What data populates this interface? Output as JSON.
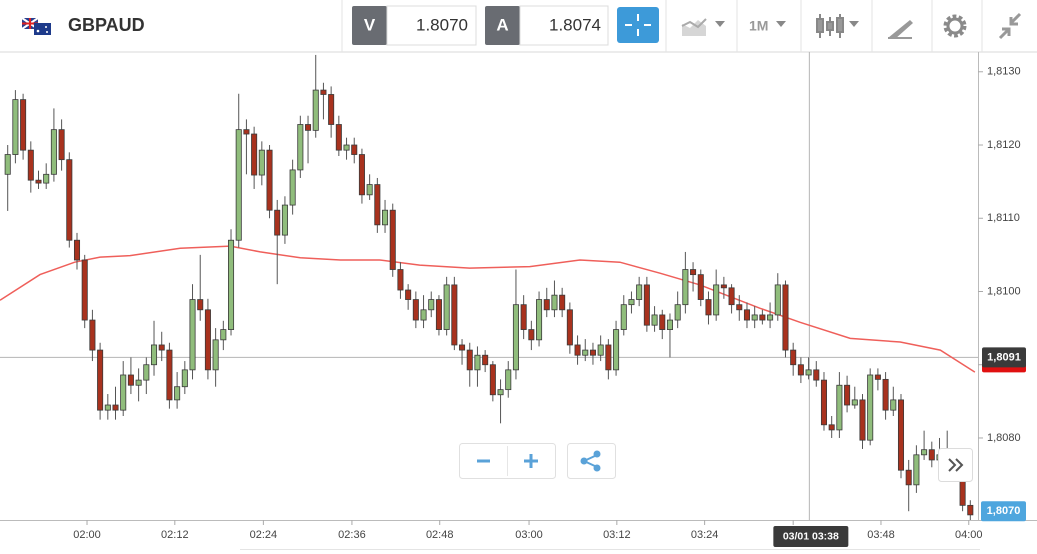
{
  "toolbar": {
    "symbol": "GBPAUD",
    "bid_label": "V",
    "bid": "1.8070",
    "ask_label": "A",
    "ask": "1.8074",
    "timeframe": "1M"
  },
  "chart_data": {
    "type": "candlestick",
    "xlim": [
      -1,
      126
    ],
    "ylim": [
      1.80688,
      1.81327
    ],
    "xticks": [
      {
        "value": 10.3,
        "label": "02:00"
      },
      {
        "value": 21.7,
        "label": "02:12"
      },
      {
        "value": 33.2,
        "label": "02:24"
      },
      {
        "value": 44.7,
        "label": "02:36"
      },
      {
        "value": 56.1,
        "label": "02:48"
      },
      {
        "value": 67.7,
        "label": "03:00"
      },
      {
        "value": 79.1,
        "label": "03:12"
      },
      {
        "value": 90.5,
        "label": "03:24"
      },
      {
        "value": 102,
        "label": "03:36"
      },
      {
        "value": 113.4,
        "label": "03:48"
      },
      {
        "value": 124.8,
        "label": "04:00"
      }
    ],
    "yticks": [
      {
        "value": 1.808,
        "label": "1,8080"
      },
      {
        "value": 1.809,
        "label": "1,8090"
      },
      {
        "value": 1.81,
        "label": "1,8100"
      },
      {
        "value": 1.811,
        "label": "1,8110"
      },
      {
        "value": 1.812,
        "label": "1,8120"
      },
      {
        "value": 1.813,
        "label": "1,8130"
      }
    ],
    "up_color": "#90bd7c",
    "down_color": "#a8321e",
    "ohlc": [
      [
        1.8116,
        1.812,
        1.8111,
        1.81187
      ],
      [
        1.81187,
        1.81275,
        1.81175,
        1.81262
      ],
      [
        1.81262,
        1.8127,
        1.8118,
        1.81193
      ],
      [
        1.81193,
        1.81205,
        1.81135,
        1.81152
      ],
      [
        1.81152,
        1.81165,
        1.8114,
        1.81148
      ],
      [
        1.81148,
        1.81175,
        1.8114,
        1.8116
      ],
      [
        1.8116,
        1.8125,
        1.8115,
        1.81221
      ],
      [
        1.81221,
        1.81235,
        1.81165,
        1.8118
      ],
      [
        1.8118,
        1.8119,
        1.8106,
        1.8107
      ],
      [
        1.8107,
        1.8108,
        1.8103,
        1.81043
      ],
      [
        1.81043,
        1.8105,
        1.8095,
        1.80961
      ],
      [
        1.80961,
        1.80975,
        1.80905,
        1.8092
      ],
      [
        1.8092,
        1.8093,
        1.80825,
        1.80838
      ],
      [
        1.80838,
        1.8086,
        1.80825,
        1.80845
      ],
      [
        1.80845,
        1.8087,
        1.80825,
        1.80838
      ],
      [
        1.80838,
        1.80905,
        1.8083,
        1.80886
      ],
      [
        1.80886,
        1.8091,
        1.8086,
        1.80872
      ],
      [
        1.80872,
        1.80895,
        1.8085,
        1.80879
      ],
      [
        1.80879,
        1.8091,
        1.8086,
        1.809
      ],
      [
        1.809,
        1.8096,
        1.80885,
        1.80927
      ],
      [
        1.80927,
        1.80945,
        1.80905,
        1.8092
      ],
      [
        1.8092,
        1.8093,
        1.8084,
        1.80852
      ],
      [
        1.80852,
        1.8089,
        1.8084,
        1.8087
      ],
      [
        1.8087,
        1.80905,
        1.8086,
        1.80893
      ],
      [
        1.80893,
        1.8101,
        1.8088,
        1.80989
      ],
      [
        1.80989,
        1.8105,
        1.8096,
        1.80975
      ],
      [
        1.80975,
        1.8099,
        1.8088,
        1.80893
      ],
      [
        1.80893,
        1.8095,
        1.8087,
        1.80934
      ],
      [
        1.80934,
        1.8096,
        1.8092,
        1.80948
      ],
      [
        1.80948,
        1.81085,
        1.8094,
        1.8107
      ],
      [
        1.8107,
        1.8127,
        1.8106,
        1.81221
      ],
      [
        1.81221,
        1.81235,
        1.8116,
        1.81215
      ],
      [
        1.81215,
        1.81225,
        1.8114,
        1.81159
      ],
      [
        1.81159,
        1.81205,
        1.81145,
        1.81193
      ],
      [
        1.81193,
        1.812,
        1.811,
        1.81111
      ],
      [
        1.81111,
        1.81125,
        1.8101,
        1.81077
      ],
      [
        1.81077,
        1.8113,
        1.81065,
        1.81118
      ],
      [
        1.81118,
        1.8118,
        1.81105,
        1.81166
      ],
      [
        1.81166,
        1.8124,
        1.81155,
        1.81228
      ],
      [
        1.81228,
        1.8124,
        1.81175,
        1.8122
      ],
      [
        1.8122,
        1.81323,
        1.8121,
        1.81275
      ],
      [
        1.81275,
        1.81285,
        1.81235,
        1.81269
      ],
      [
        1.81269,
        1.8128,
        1.8121,
        1.81228
      ],
      [
        1.81228,
        1.8124,
        1.81185,
        1.81193
      ],
      [
        1.81193,
        1.8121,
        1.8118,
        1.812
      ],
      [
        1.812,
        1.8121,
        1.81175,
        1.81187
      ],
      [
        1.81187,
        1.81195,
        1.8112,
        1.81132
      ],
      [
        1.81132,
        1.8116,
        1.81125,
        1.81146
      ],
      [
        1.81146,
        1.81155,
        1.8108,
        1.81091
      ],
      [
        1.81091,
        1.81125,
        1.8108,
        1.81111
      ],
      [
        1.81111,
        1.8112,
        1.8102,
        1.8103
      ],
      [
        1.8103,
        1.8104,
        1.8099,
        1.81002
      ],
      [
        1.81002,
        1.8101,
        1.80975,
        1.80989
      ],
      [
        1.80989,
        1.81,
        1.8095,
        1.80961
      ],
      [
        1.80961,
        1.80995,
        1.8095,
        1.80975
      ],
      [
        1.80975,
        1.81,
        1.80965,
        1.80989
      ],
      [
        1.80989,
        1.80995,
        1.8094,
        1.80948
      ],
      [
        1.80948,
        1.8102,
        1.8094,
        1.81009
      ],
      [
        1.81009,
        1.8102,
        1.8092,
        1.80927
      ],
      [
        1.80927,
        1.80935,
        1.809,
        1.8092
      ],
      [
        1.8092,
        1.8093,
        1.8087,
        1.80893
      ],
      [
        1.80893,
        1.80925,
        1.8087,
        1.80913
      ],
      [
        1.80913,
        1.8092,
        1.8089,
        1.809
      ],
      [
        1.809,
        1.80905,
        1.8085,
        1.80859
      ],
      [
        1.80859,
        1.8088,
        1.8082,
        1.80866
      ],
      [
        1.80866,
        1.80905,
        1.80855,
        1.80893
      ],
      [
        1.80893,
        1.8103,
        1.8088,
        1.80982
      ],
      [
        1.80982,
        1.80995,
        1.80935,
        1.80948
      ],
      [
        1.80948,
        1.8096,
        1.8092,
        1.80934
      ],
      [
        1.80934,
        1.81,
        1.80925,
        1.80989
      ],
      [
        1.80989,
        1.81005,
        1.80965,
        1.80975
      ],
      [
        1.80975,
        1.81015,
        1.80965,
        1.80995
      ],
      [
        1.80995,
        1.81005,
        1.80965,
        1.80975
      ],
      [
        1.80975,
        1.80985,
        1.80915,
        1.80927
      ],
      [
        1.80927,
        1.8094,
        1.809,
        1.80913
      ],
      [
        1.80913,
        1.80935,
        1.80905,
        1.8092
      ],
      [
        1.8092,
        1.8093,
        1.809,
        1.80913
      ],
      [
        1.80913,
        1.8094,
        1.80905,
        1.80927
      ],
      [
        1.80927,
        1.80935,
        1.8088,
        1.80893
      ],
      [
        1.80893,
        1.8096,
        1.80885,
        1.80948
      ],
      [
        1.80948,
        1.80995,
        1.8094,
        1.80982
      ],
      [
        1.80982,
        1.81,
        1.8097,
        1.80989
      ],
      [
        1.80989,
        1.8102,
        1.8098,
        1.81009
      ],
      [
        1.81009,
        1.8102,
        1.80945,
        1.80954
      ],
      [
        1.80954,
        1.8098,
        1.80945,
        1.80968
      ],
      [
        1.80968,
        1.80975,
        1.80935,
        1.80948
      ],
      [
        1.80948,
        1.8097,
        1.8091,
        1.80961
      ],
      [
        1.80961,
        1.81,
        1.8095,
        1.80982
      ],
      [
        1.80982,
        1.81054,
        1.8097,
        1.8103
      ],
      [
        1.8103,
        1.8104,
        1.81,
        1.81023
      ],
      [
        1.81023,
        1.8103,
        1.8098,
        1.80989
      ],
      [
        1.80989,
        1.81,
        1.80955,
        1.80968
      ],
      [
        1.80968,
        1.8103,
        1.8096,
        1.81009
      ],
      [
        1.81009,
        1.8102,
        1.8099,
        1.81005
      ],
      [
        1.81005,
        1.8101,
        1.8097,
        1.80982
      ],
      [
        1.80982,
        1.80995,
        1.8096,
        1.80975
      ],
      [
        1.80975,
        1.80985,
        1.8095,
        1.80961
      ],
      [
        1.80961,
        1.8098,
        1.8095,
        1.80968
      ],
      [
        1.80968,
        1.80975,
        1.80955,
        1.80961
      ],
      [
        1.80961,
        1.80985,
        1.8095,
        1.80968
      ],
      [
        1.80968,
        1.81025,
        1.8096,
        1.81009
      ],
      [
        1.81009,
        1.81015,
        1.8091,
        1.8092
      ],
      [
        1.8092,
        1.8093,
        1.80885,
        1.809
      ],
      [
        1.809,
        1.8091,
        1.80875,
        1.80886
      ],
      [
        1.80886,
        1.8091,
        1.8088,
        1.80893
      ],
      [
        1.80893,
        1.80905,
        1.8087,
        1.80879
      ],
      [
        1.80879,
        1.8089,
        1.8081,
        1.80818
      ],
      [
        1.80818,
        1.8083,
        1.808,
        1.80811
      ],
      [
        1.80811,
        1.8089,
        1.808,
        1.80872
      ],
      [
        1.80872,
        1.80885,
        1.80835,
        1.80845
      ],
      [
        1.80845,
        1.8087,
        1.8084,
        1.80852
      ],
      [
        1.80852,
        1.8086,
        1.80785,
        1.80797
      ],
      [
        1.80797,
        1.80895,
        1.8079,
        1.80886
      ],
      [
        1.80886,
        1.80895,
        1.80865,
        1.8088
      ],
      [
        1.8088,
        1.8089,
        1.80825,
        1.80838
      ],
      [
        1.80838,
        1.8087,
        1.8083,
        1.80852
      ],
      [
        1.80852,
        1.8086,
        1.80745,
        1.80756
      ],
      [
        1.80756,
        1.8077,
        1.807,
        1.80736
      ],
      [
        1.80736,
        1.8079,
        1.80725,
        1.80777
      ],
      [
        1.80777,
        1.8081,
        1.8077,
        1.80784
      ],
      [
        1.80784,
        1.80795,
        1.8076,
        1.8077
      ],
      [
        1.8077,
        1.808,
        1.8076,
        1.80777
      ],
      [
        1.80777,
        1.8081,
        1.8076,
        1.8077
      ],
      [
        1.8077,
        1.80775,
        1.80745,
        1.80756
      ],
      [
        1.80756,
        1.80765,
        1.807,
        1.80708
      ],
      [
        1.80708,
        1.80715,
        1.80688,
        1.80695
      ]
    ],
    "moving_average": {
      "color": "#ef5f5a",
      "x": [
        -1,
        4.2,
        8.7,
        12,
        15.9,
        22.4,
        28.9,
        32.8,
        38,
        43.2,
        48.3,
        53.5,
        60,
        67.8,
        74.3,
        79.5,
        84.7,
        89.9,
        97.7,
        102.9,
        109.4,
        115.9,
        121.1,
        125.6
      ],
      "values": [
        1.80988,
        1.81023,
        1.8104,
        1.81047,
        1.81049,
        1.81059,
        1.81062,
        1.81054,
        1.81046,
        1.81043,
        1.81043,
        1.81036,
        1.81032,
        1.81034,
        1.81043,
        1.8104,
        1.81025,
        1.81009,
        1.80977,
        1.80958,
        1.80936,
        1.80931,
        1.8092,
        1.8089
      ]
    },
    "crosshair": {
      "x": {
        "value": 104.1,
        "label": "03/01 03:38"
      },
      "y": {
        "value": 1.8091,
        "label": "1,8091"
      }
    },
    "last_price": {
      "value": 1.807,
      "label": "1,8070",
      "color": "#4ea6de"
    }
  }
}
